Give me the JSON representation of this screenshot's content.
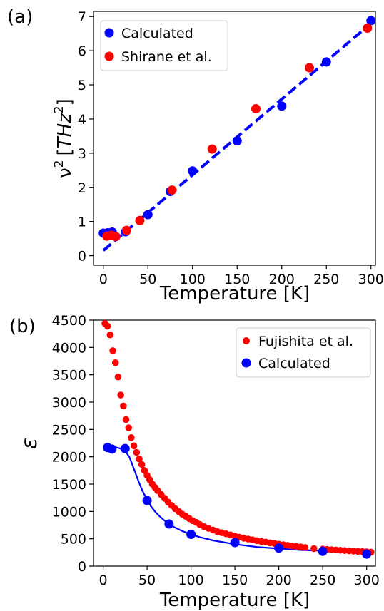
{
  "chart_data": [
    {
      "panel_label": "(a)",
      "type": "scatter",
      "xlabel": "Temperature [K]",
      "ylabel": {
        "symbol": "ν",
        "sup": "2",
        "unit_open": "[",
        "unit": "THz",
        "unit_sup": "2",
        "unit_close": "]"
      },
      "xlim": [
        -11,
        305
      ],
      "ylim": [
        -0.28,
        7.15
      ],
      "xticks": [
        0,
        50,
        100,
        150,
        200,
        250,
        300
      ],
      "yticks": [
        0,
        1,
        2,
        3,
        4,
        5,
        6,
        7
      ],
      "legend": {
        "position": "top-left"
      },
      "series": [
        {
          "name": "Calculated",
          "color": "#0000ff",
          "x": [
            0,
            5,
            10,
            25,
            50,
            75,
            100,
            150,
            200,
            250,
            300
          ],
          "y": [
            0.66,
            0.67,
            0.69,
            0.7,
            1.2,
            1.88,
            2.48,
            3.36,
            4.38,
            5.67,
            6.88
          ]
        },
        {
          "name": "Shirane et al.",
          "color": "#ff0000",
          "x": [
            4,
            9,
            14,
            26,
            41,
            77,
            122,
            171,
            231,
            296
          ],
          "y": [
            0.57,
            0.6,
            0.56,
            0.74,
            1.03,
            1.92,
            3.12,
            4.3,
            5.5,
            6.66
          ]
        }
      ],
      "fit_line": {
        "color": "#0000ff",
        "style": "dashed",
        "x": [
          0,
          300
        ],
        "y": [
          0.15,
          6.8
        ]
      }
    },
    {
      "panel_label": "(b)",
      "type": "scatter",
      "xlabel": "Temperature [K]",
      "ylabel": "ε",
      "xlim": [
        -11,
        310
      ],
      "ylim": [
        0,
        4500
      ],
      "xticks": [
        0,
        50,
        100,
        150,
        200,
        250,
        300
      ],
      "yticks": [
        0,
        500,
        1000,
        1500,
        2000,
        2500,
        3000,
        3500,
        4000,
        4500
      ],
      "legend": {
        "position": "top-right"
      },
      "series": [
        {
          "name": "Fujishita et al.",
          "color": "#ff0000",
          "x": [
            2,
            5,
            8,
            11,
            14,
            17,
            20,
            23,
            26,
            29,
            32,
            35,
            38,
            41,
            44,
            47,
            50,
            53,
            56,
            59,
            62,
            66,
            70,
            74,
            78,
            82,
            86,
            90,
            94,
            98,
            102,
            106,
            110,
            115,
            120,
            125,
            130,
            135,
            140,
            145,
            150,
            155,
            160,
            165,
            170,
            175,
            180,
            185,
            190,
            195,
            200,
            205,
            210,
            215,
            220,
            225,
            230,
            240,
            250,
            255,
            260,
            265,
            270,
            275,
            280,
            285,
            290,
            295,
            300,
            305
          ],
          "y": [
            4440,
            4390,
            4230,
            3940,
            3720,
            3460,
            3130,
            2930,
            2680,
            2530,
            2350,
            2200,
            2080,
            1960,
            1860,
            1750,
            1660,
            1580,
            1500,
            1440,
            1380,
            1310,
            1240,
            1170,
            1110,
            1050,
            1000,
            950,
            910,
            870,
            830,
            800,
            760,
            720,
            690,
            660,
            630,
            610,
            590,
            570,
            550,
            530,
            510,
            495,
            480,
            465,
            450,
            440,
            425,
            415,
            400,
            390,
            380,
            370,
            360,
            350,
            340,
            320,
            310,
            305,
            300,
            295,
            290,
            285,
            280,
            275,
            270,
            265,
            260,
            255
          ]
        },
        {
          "name": "Calculated",
          "color": "#0000ff",
          "x": [
            5,
            10,
            25,
            50,
            75,
            100,
            150,
            200,
            250,
            300
          ],
          "y": [
            2170,
            2140,
            2150,
            1200,
            770,
            580,
            430,
            330,
            270,
            220
          ]
        }
      ],
      "fit_line": {
        "color": "#0000ff",
        "style": "solid",
        "x": [
          0,
          5,
          10,
          15,
          20,
          25,
          30,
          35,
          40,
          45,
          50,
          55,
          60,
          65,
          70,
          75,
          80,
          90,
          100,
          110,
          125,
          150,
          175,
          200,
          225,
          250,
          275,
          300
        ],
        "y": [
          2160,
          2170,
          2180,
          2170,
          2150,
          2110,
          1990,
          1780,
          1560,
          1370,
          1210,
          1080,
          980,
          900,
          830,
          770,
          720,
          640,
          580,
          530,
          470,
          400,
          350,
          320,
          295,
          280,
          272,
          268
        ]
      }
    }
  ]
}
